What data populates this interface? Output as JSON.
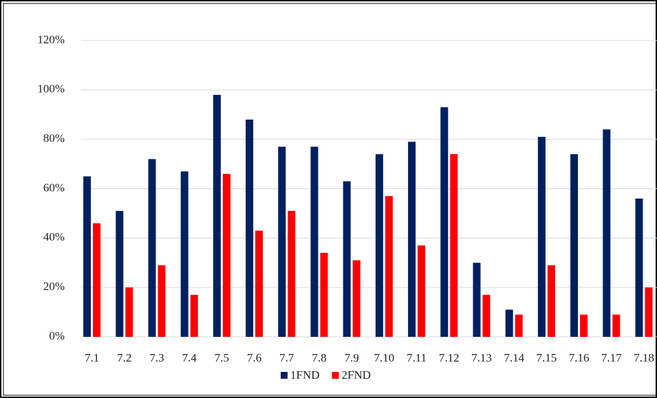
{
  "chart_data": {
    "type": "bar",
    "categories": [
      "7.1",
      "7.2",
      "7.3",
      "7.4",
      "7.5",
      "7.6",
      "7.7",
      "7.8",
      "7.9",
      "7.10",
      "7.11",
      "7.12",
      "7.13",
      "7.14",
      "7.15",
      "7.16",
      "7.17",
      "7.18"
    ],
    "series": [
      {
        "name": "1FND",
        "color": "#002060",
        "values": [
          65,
          51,
          72,
          67,
          98,
          88,
          77,
          77,
          63,
          74,
          79,
          93,
          30,
          11,
          81,
          74,
          84,
          56
        ]
      },
      {
        "name": "2FND",
        "color": "#ff0000",
        "values": [
          46,
          20,
          29,
          17,
          66,
          43,
          51,
          34,
          31,
          57,
          37,
          74,
          17,
          9,
          29,
          9,
          9,
          20
        ]
      }
    ],
    "ylim": [
      0,
      120
    ],
    "yticks": [
      {
        "value": 0,
        "label": "0%"
      },
      {
        "value": 20,
        "label": "20%"
      },
      {
        "value": 40,
        "label": "40%"
      },
      {
        "value": 60,
        "label": "60%"
      },
      {
        "value": 80,
        "label": "80%"
      },
      {
        "value": 100,
        "label": "100%"
      },
      {
        "value": 120,
        "label": "120%"
      }
    ],
    "grid": true,
    "legend": "bottom"
  }
}
